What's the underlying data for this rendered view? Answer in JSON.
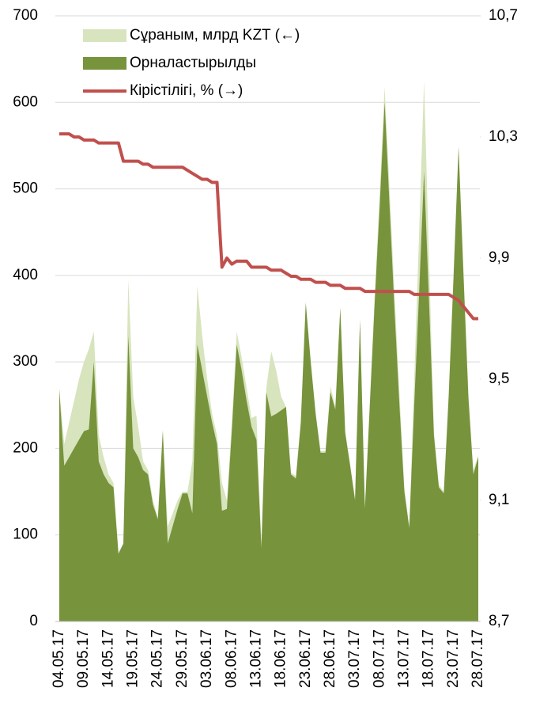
{
  "chart_data": {
    "type": "area",
    "categories": [
      "04.05.17",
      null,
      null,
      null,
      null,
      "09.05.17",
      null,
      null,
      null,
      null,
      "14.05.17",
      null,
      null,
      null,
      null,
      "19.05.17",
      null,
      null,
      null,
      null,
      "24.05.17",
      null,
      null,
      null,
      null,
      "29.05.17",
      null,
      null,
      null,
      null,
      "03.06.17",
      null,
      null,
      null,
      null,
      "08.06.17",
      null,
      null,
      null,
      null,
      "13.06.17",
      null,
      null,
      null,
      null,
      "18.06.17",
      null,
      null,
      null,
      null,
      "23.06.17",
      null,
      null,
      null,
      null,
      "28.06.17",
      null,
      null,
      null,
      null,
      "03.07.17",
      null,
      null,
      null,
      null,
      "08.07.17",
      null,
      null,
      null,
      null,
      "13.07.17",
      null,
      null,
      null,
      null,
      "18.07.17",
      null,
      null,
      null,
      null,
      "23.07.17",
      null,
      null,
      null,
      null,
      "28.07.17"
    ],
    "series": [
      {
        "name": "Сұраным, млрд KZT (←)",
        "type": "area",
        "color": "#d7e4bd",
        "values": [
          270,
          205,
          230,
          255,
          280,
          300,
          315,
          335,
          215,
          190,
          170,
          160,
          80,
          90,
          395,
          260,
          225,
          185,
          175,
          140,
          120,
          222,
          110,
          125,
          140,
          150,
          150,
          185,
          388,
          330,
          280,
          240,
          215,
          160,
          140,
          230,
          335,
          305,
          270,
          235,
          238,
          90,
          270,
          312,
          290,
          260,
          248,
          172,
          168,
          232,
          370,
          302,
          242,
          197,
          197,
          272,
          248,
          364,
          220,
          182,
          142,
          350,
          132,
          255,
          380,
          495,
          618,
          500,
          380,
          265,
          155,
          110,
          280,
          450,
          625,
          420,
          220,
          158,
          150,
          265,
          405,
          550,
          405,
          262,
          175,
          192
        ]
      },
      {
        "name": "Орналастырылды",
        "type": "area",
        "color": "#77933c",
        "values": [
          268,
          180,
          190,
          200,
          210,
          220,
          222,
          300,
          185,
          170,
          160,
          155,
          78,
          90,
          330,
          200,
          190,
          175,
          170,
          135,
          118,
          220,
          90,
          110,
          130,
          148,
          148,
          125,
          320,
          290,
          260,
          230,
          205,
          128,
          130,
          220,
          320,
          290,
          255,
          225,
          210,
          85,
          265,
          237,
          240,
          244,
          248,
          170,
          165,
          230,
          368,
          300,
          240,
          195,
          195,
          265,
          245,
          362,
          218,
          180,
          140,
          348,
          130,
          250,
          370,
          480,
          600,
          480,
          360,
          250,
          150,
          108,
          250,
          380,
          520,
          370,
          215,
          155,
          148,
          260,
          400,
          548,
          400,
          258,
          170,
          190
        ]
      },
      {
        "name": "Кірістілігі, % (→)",
        "type": "line",
        "axis": "y2",
        "color": "#c0504d",
        "values": [
          10.31,
          10.31,
          10.31,
          10.3,
          10.3,
          10.29,
          10.29,
          10.29,
          10.28,
          10.28,
          10.28,
          10.28,
          10.28,
          10.22,
          10.22,
          10.22,
          10.22,
          10.21,
          10.21,
          10.2,
          10.2,
          10.2,
          10.2,
          10.2,
          10.2,
          10.2,
          10.19,
          10.18,
          10.17,
          10.16,
          10.16,
          10.15,
          10.15,
          9.87,
          9.9,
          9.88,
          9.89,
          9.89,
          9.89,
          9.87,
          9.87,
          9.87,
          9.87,
          9.86,
          9.86,
          9.86,
          9.85,
          9.84,
          9.84,
          9.83,
          9.83,
          9.83,
          9.82,
          9.82,
          9.82,
          9.81,
          9.81,
          9.81,
          9.8,
          9.8,
          9.8,
          9.8,
          9.79,
          9.79,
          9.79,
          9.79,
          9.79,
          9.79,
          9.79,
          9.79,
          9.79,
          9.79,
          9.78,
          9.78,
          9.78,
          9.78,
          9.78,
          9.78,
          9.78,
          9.78,
          9.77,
          9.76,
          9.74,
          9.72,
          9.7,
          9.7
        ]
      }
    ],
    "ylim": [
      0,
      700
    ],
    "yticks": [
      0,
      100,
      200,
      300,
      400,
      500,
      600,
      700
    ],
    "y2lim": [
      8.7,
      10.7
    ],
    "y2ticks": [
      {
        "value": 8.7,
        "label": "8,7"
      },
      {
        "value": 9.1,
        "label": "9,1"
      },
      {
        "value": 9.5,
        "label": "9,5"
      },
      {
        "value": 9.9,
        "label": "9,9"
      },
      {
        "value": 10.3,
        "label": "10,3"
      },
      {
        "value": 10.7,
        "label": "10,7"
      }
    ],
    "grid": true,
    "legend": "upper left"
  }
}
